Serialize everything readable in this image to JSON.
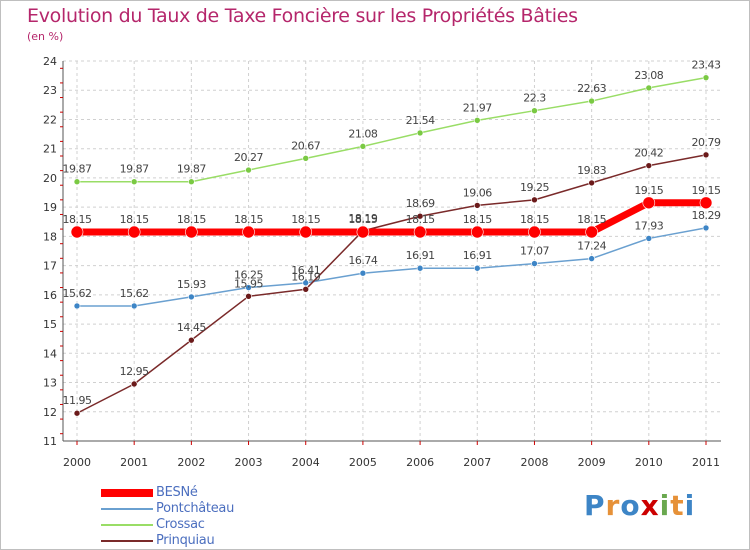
{
  "title": "Evolution du Taux de Taxe Foncière sur les Propriétés Bâties",
  "unit": "(en %)",
  "logo": {
    "text": "Proxiti",
    "letters": [
      "P",
      "r",
      "o",
      "x",
      "i",
      "t",
      "i"
    ],
    "colors": [
      "#3d85c6",
      "#e69138",
      "#3d85c6",
      "#cc0000",
      "#6aa84f",
      "#e69138",
      "#3d85c6"
    ]
  },
  "chart_data": {
    "type": "line",
    "x": [
      "2000",
      "2001",
      "2002",
      "2003",
      "2004",
      "2005",
      "2006",
      "2007",
      "2008",
      "2009",
      "2010",
      "2011"
    ],
    "ylim": [
      11,
      24
    ],
    "yticks": [
      11,
      12,
      13,
      14,
      15,
      16,
      17,
      18,
      19,
      20,
      21,
      22,
      23,
      24
    ],
    "grid": true,
    "legend_position": "bottom-left",
    "series": [
      {
        "name": "BESNé",
        "color": "#ff0000",
        "point_color": "#ff0000",
        "values": [
          18.15,
          18.15,
          18.15,
          18.15,
          18.15,
          18.15,
          18.15,
          18.15,
          18.15,
          18.15,
          19.15,
          19.15
        ],
        "labels": [
          "18.15",
          "18.15",
          "18.15",
          "18.15",
          "18.15",
          "18.15",
          "18.15",
          "18.15",
          "18.15",
          "18.15",
          "19.15",
          "19.15"
        ]
      },
      {
        "name": "Pontchâteau",
        "color": "#6aa0d0",
        "point_color": "#3d85c6",
        "values": [
          15.62,
          15.62,
          15.93,
          16.25,
          16.41,
          16.74,
          16.91,
          16.91,
          17.07,
          17.24,
          17.93,
          18.29
        ],
        "labels": [
          "15.62",
          "15.62",
          "15.93",
          "16.25",
          "16.41",
          "16.74",
          "16.91",
          "16.91",
          "17.07",
          "17.24",
          "17.93",
          "18.29"
        ]
      },
      {
        "name": "Crossac",
        "color": "#99dd66",
        "point_color": "#7ac943",
        "values": [
          19.87,
          19.87,
          19.87,
          20.27,
          20.67,
          21.08,
          21.54,
          21.97,
          22.3,
          22.63,
          23.08,
          23.43
        ],
        "labels": [
          "19.87",
          "19.87",
          "19.87",
          "20.27",
          "20.67",
          "21.08",
          "21.54",
          "21.97",
          "22.3",
          "22.63",
          "23.08",
          "23.43"
        ]
      },
      {
        "name": "Prinquiau",
        "color": "#7a2a2a",
        "point_color": "#6b1a1a",
        "values": [
          11.95,
          12.95,
          14.45,
          15.95,
          16.19,
          18.19,
          18.69,
          19.06,
          19.25,
          19.83,
          20.42,
          20.79
        ],
        "labels": [
          "11.95",
          "12.95",
          "14.45",
          "15.95",
          "16.19",
          "18.19",
          "18.69",
          "19.06",
          "19.25",
          "19.83",
          "20.42",
          "20.79"
        ]
      }
    ]
  }
}
